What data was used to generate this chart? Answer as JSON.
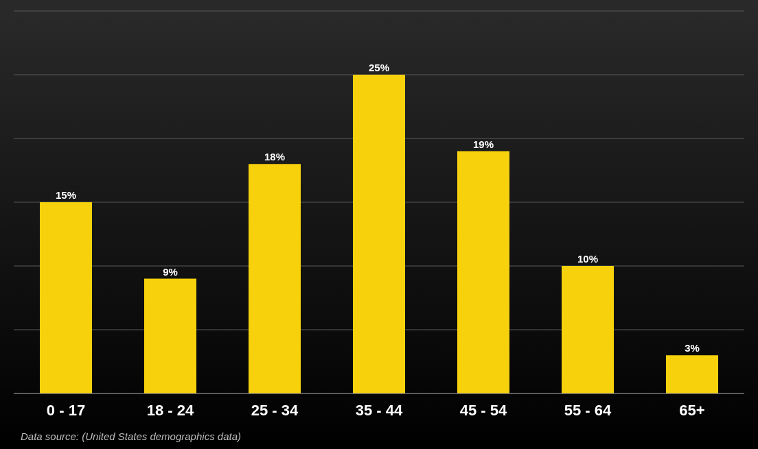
{
  "chart_data": {
    "type": "bar",
    "categories": [
      "0 - 17",
      "18 - 24",
      "25 - 34",
      "35 - 44",
      "45 - 54",
      "55 - 64",
      "65+"
    ],
    "values": [
      15,
      9,
      18,
      25,
      19,
      10,
      3
    ],
    "value_labels": [
      "15%",
      "9%",
      "18%",
      "25%",
      "19%",
      "10%",
      "3%"
    ],
    "color": "#f7d20c",
    "ylim": [
      0,
      30
    ],
    "yticks": [
      {
        "value": 0,
        "label": null
      },
      {
        "value": 5,
        "label": null
      },
      {
        "value": 10,
        "label": null
      },
      {
        "value": 15,
        "label": null
      },
      {
        "value": 20,
        "label": null
      },
      {
        "value": 25,
        "label": null
      },
      {
        "value": 30,
        "label": null
      }
    ],
    "tick_labels": "x",
    "grid": "y",
    "annotations": [
      "Data source: (United States demographics data)"
    ]
  }
}
